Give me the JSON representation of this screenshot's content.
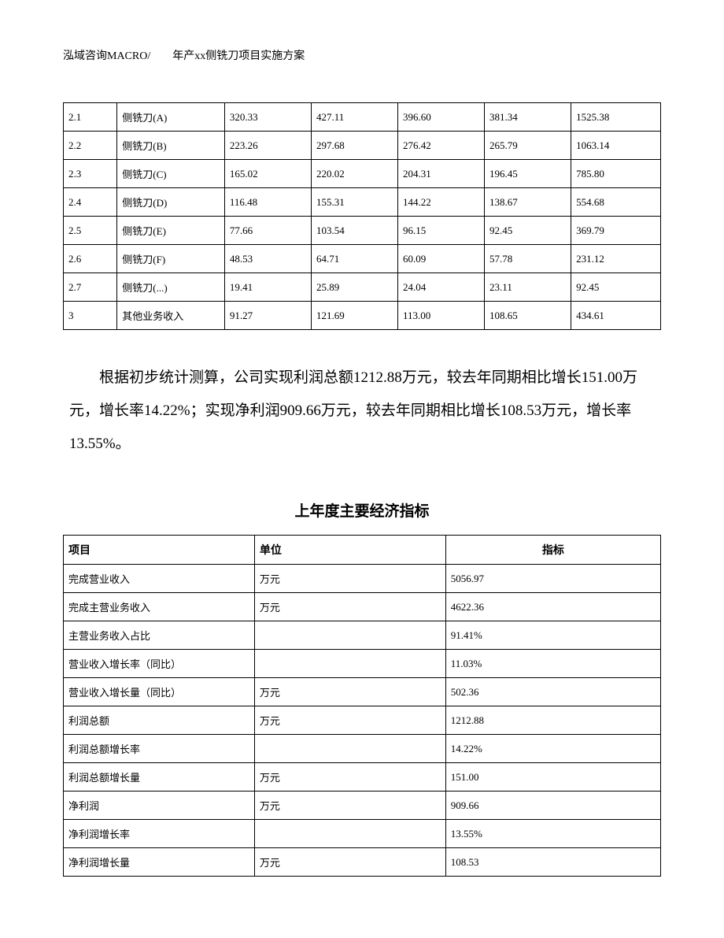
{
  "header": "泓域咨询MACRO/　　年产xx侧铣刀项目实施方案",
  "table1": {
    "type": "table",
    "col_widths_pct": [
      9,
      18,
      14.5,
      14.5,
      14.5,
      14.5,
      15
    ],
    "border_color": "#000000",
    "font_size": 13,
    "text_color": "#000000",
    "rows": [
      [
        "2.1",
        "侧铣刀(A)",
        "320.33",
        "427.11",
        "396.60",
        "381.34",
        "1525.38"
      ],
      [
        "2.2",
        "侧铣刀(B)",
        "223.26",
        "297.68",
        "276.42",
        "265.79",
        "1063.14"
      ],
      [
        "2.3",
        "侧铣刀(C)",
        "165.02",
        "220.02",
        "204.31",
        "196.45",
        "785.80"
      ],
      [
        "2.4",
        "侧铣刀(D)",
        "116.48",
        "155.31",
        "144.22",
        "138.67",
        "554.68"
      ],
      [
        "2.5",
        "侧铣刀(E)",
        "77.66",
        "103.54",
        "96.15",
        "92.45",
        "369.79"
      ],
      [
        "2.6",
        "侧铣刀(F)",
        "48.53",
        "64.71",
        "60.09",
        "57.78",
        "231.12"
      ],
      [
        "2.7",
        "侧铣刀(...)",
        "19.41",
        "25.89",
        "24.04",
        "23.11",
        "92.45"
      ],
      [
        "3",
        "其他业务收入",
        "91.27",
        "121.69",
        "113.00",
        "108.65",
        "434.61"
      ]
    ]
  },
  "paragraph": "根据初步统计测算，公司实现利润总额1212.88万元，较去年同期相比增长151.00万元，增长率14.22%；实现净利润909.66万元，较去年同期相比增长108.53万元，增长率13.55%。",
  "section_title": "上年度主要经济指标",
  "table2": {
    "type": "table",
    "col_widths_pct": [
      32,
      32,
      36
    ],
    "border_color": "#000000",
    "font_size": 13,
    "text_color": "#000000",
    "header_font_size": 14,
    "columns": [
      "项目",
      "单位",
      "指标"
    ],
    "header_align": [
      "left",
      "left",
      "center"
    ],
    "rows": [
      [
        "完成营业收入",
        "万元",
        "5056.97"
      ],
      [
        "完成主营业务收入",
        "万元",
        "4622.36"
      ],
      [
        "主营业务收入占比",
        "",
        "91.41%"
      ],
      [
        "营业收入增长率（同比）",
        "",
        "11.03%"
      ],
      [
        "营业收入增长量（同比）",
        "万元",
        "502.36"
      ],
      [
        "利润总额",
        "万元",
        "1212.88"
      ],
      [
        "利润总额增长率",
        "",
        "14.22%"
      ],
      [
        "利润总额增长量",
        "万元",
        "151.00"
      ],
      [
        "净利润",
        "万元",
        "909.66"
      ],
      [
        "净利润增长率",
        "",
        "13.55%"
      ],
      [
        "净利润增长量",
        "万元",
        "108.53"
      ]
    ]
  }
}
